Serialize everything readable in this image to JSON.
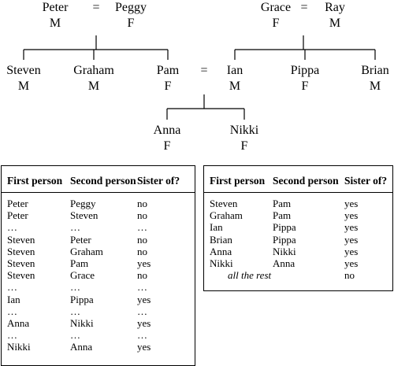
{
  "tree": {
    "couple_symbol": "=",
    "people": {
      "peter": {
        "name": "Peter",
        "sex": "M"
      },
      "peggy": {
        "name": "Peggy",
        "sex": "F"
      },
      "grace": {
        "name": "Grace",
        "sex": "F"
      },
      "ray": {
        "name": "Ray",
        "sex": "M"
      },
      "steven": {
        "name": "Steven",
        "sex": "M"
      },
      "graham": {
        "name": "Graham",
        "sex": "M"
      },
      "pam": {
        "name": "Pam",
        "sex": "F"
      },
      "ian": {
        "name": "Ian",
        "sex": "M"
      },
      "pippa": {
        "name": "Pippa",
        "sex": "F"
      },
      "brian": {
        "name": "Brian",
        "sex": "M"
      },
      "anna": {
        "name": "Anna",
        "sex": "F"
      },
      "nikki": {
        "name": "Nikki",
        "sex": "F"
      }
    }
  },
  "left_table": {
    "headers": [
      "First person",
      "Second person",
      "Sister of?"
    ],
    "rows": [
      [
        "Peter",
        "Peggy",
        "no"
      ],
      [
        "Peter",
        "Steven",
        "no"
      ],
      [
        "…",
        "…",
        "…"
      ],
      [
        "Steven",
        "Peter",
        "no"
      ],
      [
        "Steven",
        "Graham",
        "no"
      ],
      [
        "Steven",
        "Pam",
        "yes"
      ],
      [
        "Steven",
        "Grace",
        "no"
      ],
      [
        "…",
        "…",
        "…"
      ],
      [
        "Ian",
        "Pippa",
        "yes"
      ],
      [
        "…",
        "…",
        "…"
      ],
      [
        "Anna",
        "Nikki",
        "yes"
      ],
      [
        "…",
        "…",
        "…"
      ],
      [
        "Nikki",
        "Anna",
        "yes"
      ]
    ]
  },
  "right_table": {
    "headers": [
      "First person",
      "Second person",
      "Sister of?"
    ],
    "rows": [
      [
        "Steven",
        "Pam",
        "yes"
      ],
      [
        "Graham",
        "Pam",
        "yes"
      ],
      [
        "Ian",
        "Pippa",
        "yes"
      ],
      [
        "Brian",
        "Pippa",
        "yes"
      ],
      [
        "Anna",
        "Nikki",
        "yes"
      ],
      [
        "Nikki",
        "Anna",
        "yes"
      ]
    ],
    "rest_label": "all the rest",
    "rest_value": "no"
  }
}
